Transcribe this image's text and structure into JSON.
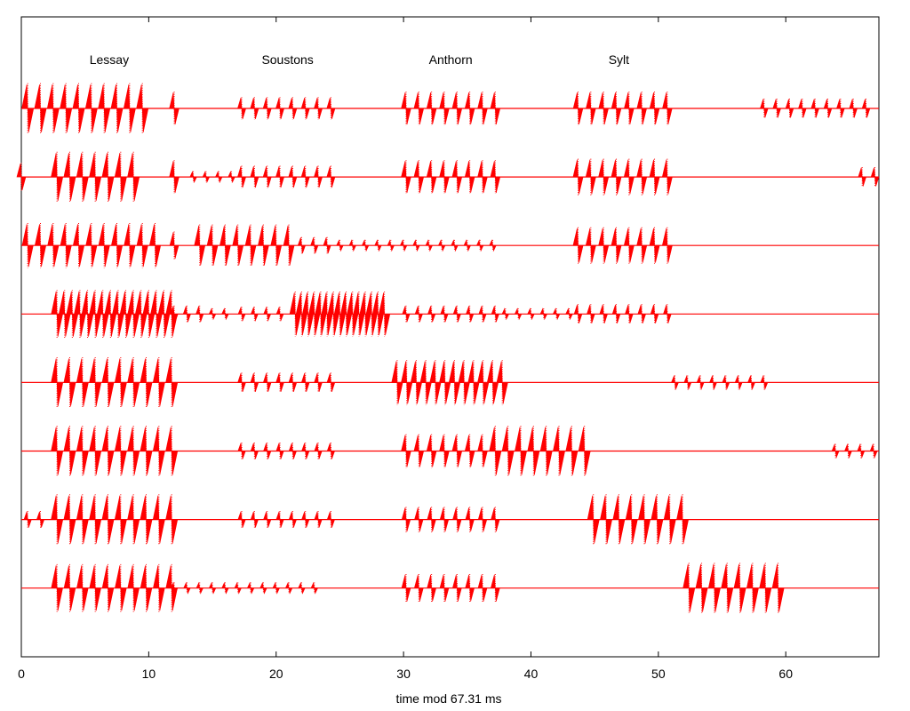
{
  "chart_data": {
    "type": "line",
    "title": "",
    "xlabel": "time mod 67.31 ms",
    "ylabel": "",
    "xlim": [
      0,
      67.31
    ],
    "xticks": [
      0,
      10,
      20,
      30,
      40,
      50,
      60
    ],
    "xtick_labels": [
      "0",
      "10",
      "20",
      "30",
      "40",
      "50",
      "60"
    ],
    "grid": false,
    "trace_color": "#ff0000",
    "station_labels": [
      {
        "name": "Lessay",
        "x": 6.9
      },
      {
        "name": "Soustons",
        "x": 20.9
      },
      {
        "name": "Anthorn",
        "x": 33.7
      },
      {
        "name": "Sylt",
        "x": 46.9
      }
    ],
    "series": [
      {
        "pulse_groups": [
          {
            "start": 0.5,
            "step": 1.0,
            "count": 10,
            "amp": 0.9
          },
          {
            "start": 12.0,
            "step": 1.0,
            "count": 1,
            "amp": 0.6
          },
          {
            "start": 17.3,
            "step": 1.0,
            "count": 8,
            "amp": 0.4
          },
          {
            "start": 30.2,
            "step": 1.0,
            "count": 8,
            "amp": 0.6
          },
          {
            "start": 43.7,
            "step": 1.0,
            "count": 8,
            "amp": 0.6
          },
          {
            "start": 58.3,
            "step": 1.0,
            "count": 9,
            "amp": 0.35
          }
        ]
      },
      {
        "pulse_groups": [
          {
            "start": 0.0,
            "step": 1.0,
            "count": 1,
            "amp": 0.5
          },
          {
            "start": 2.8,
            "step": 1.0,
            "count": 7,
            "amp": 0.9
          },
          {
            "start": 12.0,
            "step": 1.0,
            "count": 1,
            "amp": 0.6
          },
          {
            "start": 13.5,
            "step": 1.0,
            "count": 4,
            "amp": 0.2
          },
          {
            "start": 17.3,
            "step": 1.0,
            "count": 8,
            "amp": 0.4
          },
          {
            "start": 30.2,
            "step": 1.0,
            "count": 8,
            "amp": 0.6
          },
          {
            "start": 43.7,
            "step": 1.0,
            "count": 8,
            "amp": 0.65
          },
          {
            "start": 66.0,
            "step": 1.0,
            "count": 2,
            "amp": 0.35
          }
        ]
      },
      {
        "pulse_groups": [
          {
            "start": 0.5,
            "step": 1.0,
            "count": 11,
            "amp": 0.8
          },
          {
            "start": 12.0,
            "step": 1.0,
            "count": 1,
            "amp": 0.5
          },
          {
            "start": 14.0,
            "step": 1.0,
            "count": 8,
            "amp": 0.75
          },
          {
            "start": 22.0,
            "step": 1.0,
            "count": 3,
            "amp": 0.3
          },
          {
            "start": 25.0,
            "step": 1.0,
            "count": 13,
            "amp": 0.2
          },
          {
            "start": 43.7,
            "step": 1.0,
            "count": 8,
            "amp": 0.65
          }
        ]
      },
      {
        "pulse_groups": [
          {
            "start": 2.8,
            "step": 0.6,
            "count": 16,
            "amp": 0.85
          },
          {
            "start": 12.0,
            "step": 1.0,
            "count": 3,
            "amp": 0.3
          },
          {
            "start": 15.0,
            "step": 1.0,
            "count": 2,
            "amp": 0.2
          },
          {
            "start": 17.3,
            "step": 1.0,
            "count": 4,
            "amp": 0.25
          },
          {
            "start": 21.5,
            "step": 0.5,
            "count": 15,
            "amp": 0.8
          },
          {
            "start": 30.2,
            "step": 1.0,
            "count": 8,
            "amp": 0.3
          },
          {
            "start": 38.0,
            "step": 1.0,
            "count": 6,
            "amp": 0.2
          },
          {
            "start": 43.7,
            "step": 1.0,
            "count": 8,
            "amp": 0.35
          }
        ]
      },
      {
        "pulse_groups": [
          {
            "start": 2.8,
            "step": 1.0,
            "count": 10,
            "amp": 0.9
          },
          {
            "start": 17.3,
            "step": 1.0,
            "count": 8,
            "amp": 0.35
          },
          {
            "start": 29.5,
            "step": 0.75,
            "count": 12,
            "amp": 0.8
          },
          {
            "start": 51.3,
            "step": 1.0,
            "count": 8,
            "amp": 0.25
          }
        ]
      },
      {
        "pulse_groups": [
          {
            "start": 2.8,
            "step": 1.0,
            "count": 10,
            "amp": 0.9
          },
          {
            "start": 17.3,
            "step": 1.0,
            "count": 8,
            "amp": 0.3
          },
          {
            "start": 30.2,
            "step": 1.0,
            "count": 7,
            "amp": 0.6
          },
          {
            "start": 37.2,
            "step": 1.0,
            "count": 8,
            "amp": 0.9
          },
          {
            "start": 63.9,
            "step": 1.0,
            "count": 4,
            "amp": 0.25
          }
        ]
      },
      {
        "pulse_groups": [
          {
            "start": 0.5,
            "step": 1.0,
            "count": 2,
            "amp": 0.3
          },
          {
            "start": 2.8,
            "step": 1.0,
            "count": 10,
            "amp": 0.9
          },
          {
            "start": 17.3,
            "step": 1.0,
            "count": 8,
            "amp": 0.3
          },
          {
            "start": 30.2,
            "step": 1.0,
            "count": 8,
            "amp": 0.45
          },
          {
            "start": 44.9,
            "step": 1.0,
            "count": 8,
            "amp": 0.9
          }
        ]
      },
      {
        "pulse_groups": [
          {
            "start": 2.8,
            "step": 1.0,
            "count": 10,
            "amp": 0.85
          },
          {
            "start": 12.0,
            "step": 1.0,
            "count": 12,
            "amp": 0.2
          },
          {
            "start": 30.2,
            "step": 1.0,
            "count": 8,
            "amp": 0.5
          },
          {
            "start": 52.4,
            "step": 1.0,
            "count": 8,
            "amp": 0.9
          }
        ]
      }
    ]
  }
}
